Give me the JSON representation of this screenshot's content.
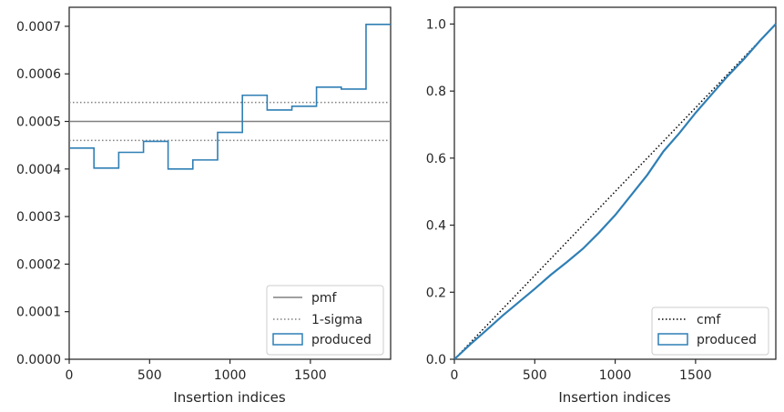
{
  "chart_data": [
    {
      "type": "histogram-step",
      "xlabel": "Insertion indices",
      "ylabel": "",
      "xlim": [
        0,
        1999
      ],
      "ylim": [
        0,
        0.00074
      ],
      "xticks": [
        0,
        500,
        1000,
        1500
      ],
      "xtick_labels": [
        "0",
        "500",
        "1000",
        "1500"
      ],
      "yticks": [
        0,
        0.0001,
        0.0002,
        0.0003,
        0.0004,
        0.0005,
        0.0006,
        0.0007
      ],
      "ytick_labels": [
        "0.0000",
        "0.0001",
        "0.0002",
        "0.0003",
        "0.0004",
        "0.0005",
        "0.0006",
        "0.0007"
      ],
      "bin_edges": [
        0,
        154,
        308,
        462,
        615,
        769,
        923,
        1077,
        1231,
        1385,
        1538,
        1692,
        1846,
        1999
      ],
      "values": [
        0.000444,
        0.000402,
        0.000435,
        0.000458,
        0.0004,
        0.000419,
        0.000477,
        0.000555,
        0.000524,
        0.000532,
        0.000572,
        0.000568,
        0.000704
      ],
      "pmf": 0.0005,
      "sigma_band": [
        0.00046,
        0.00054
      ],
      "legend": [
        "pmf",
        "1-sigma",
        "produced"
      ],
      "legend_loc": "lower right",
      "grid": false,
      "colors": {
        "pmf": "#808080",
        "sigma": "#808080",
        "produced": "#2f7fb5"
      }
    },
    {
      "type": "line",
      "xlabel": "Insertion indices",
      "ylabel": "",
      "xlim": [
        0,
        1999
      ],
      "ylim": [
        0,
        1.05
      ],
      "xticks": [
        0,
        500,
        1000,
        1500
      ],
      "xtick_labels": [
        "0",
        "500",
        "1000",
        "1500"
      ],
      "yticks": [
        0,
        0.2,
        0.4,
        0.6,
        0.8,
        1.0
      ],
      "ytick_labels": [
        "0.0",
        "0.2",
        "0.4",
        "0.6",
        "0.8",
        "1.0"
      ],
      "series": [
        {
          "name": "cmf",
          "x": [
            0,
            1999
          ],
          "y": [
            0,
            1.0
          ],
          "style": "dotted",
          "color": "#000000"
        },
        {
          "name": "produced",
          "x": [
            0,
            100,
            200,
            300,
            400,
            500,
            600,
            700,
            800,
            900,
            1000,
            1100,
            1200,
            1300,
            1400,
            1500,
            1600,
            1700,
            1800,
            1900,
            1999
          ],
          "y": [
            0,
            0.045,
            0.087,
            0.13,
            0.17,
            0.21,
            0.252,
            0.29,
            0.33,
            0.378,
            0.43,
            0.49,
            0.55,
            0.62,
            0.675,
            0.735,
            0.79,
            0.845,
            0.895,
            0.95,
            1.0
          ],
          "style": "solid",
          "color": "#2f7fb5"
        }
      ],
      "legend": [
        "cmf",
        "produced"
      ],
      "legend_loc": "lower right",
      "grid": false
    }
  ]
}
